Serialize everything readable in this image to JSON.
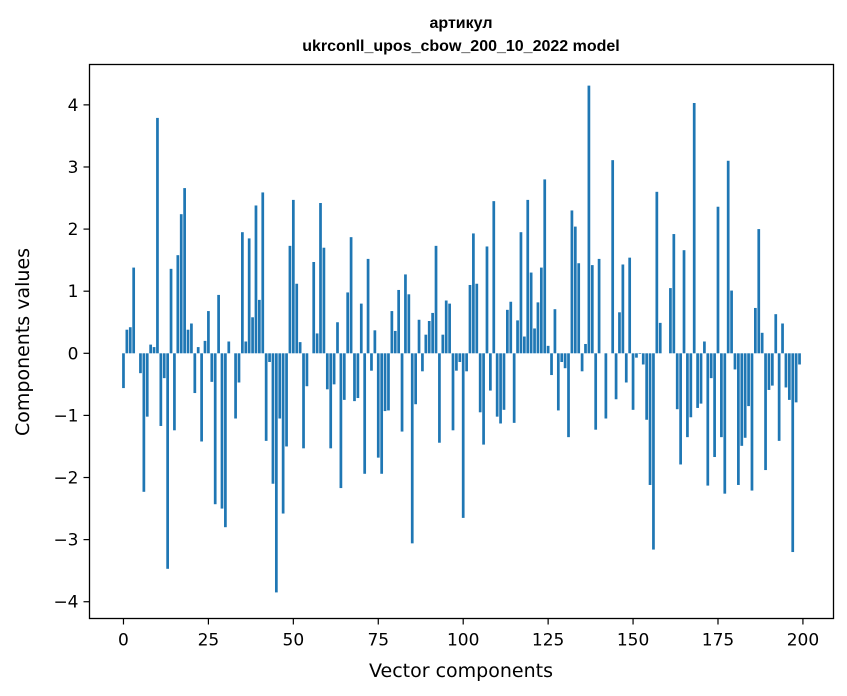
{
  "chart_data": {
    "type": "bar",
    "title_line1": "артикул",
    "title_line2": "ukrconll_upos_cbow_200_10_2022 model",
    "xlabel": "Vector components",
    "ylabel": "Components values",
    "xlim": [
      -10,
      209
    ],
    "ylim": [
      -4.27,
      4.65
    ],
    "xticks": [
      0,
      25,
      50,
      75,
      100,
      125,
      150,
      175,
      200
    ],
    "yticks": [
      -4,
      -3,
      -2,
      -1,
      0,
      1,
      2,
      3,
      4
    ],
    "xtick_labels": [
      "0",
      "25",
      "50",
      "75",
      "100",
      "125",
      "150",
      "175",
      "200"
    ],
    "ytick_labels": [
      "−4",
      "−3",
      "−2",
      "−1",
      "0",
      "1",
      "2",
      "3",
      "4"
    ],
    "bar_color": "#1f77b4",
    "values": [
      -0.56,
      0.38,
      0.42,
      1.38,
      0.0,
      -0.32,
      -2.23,
      -1.02,
      0.14,
      0.1,
      3.79,
      -1.17,
      -0.4,
      -3.47,
      1.36,
      -1.24,
      1.58,
      2.24,
      2.66,
      0.38,
      0.48,
      -0.64,
      0.1,
      -1.42,
      0.2,
      0.68,
      -0.46,
      -2.43,
      0.94,
      -2.5,
      -2.8,
      0.19,
      0.0,
      -1.05,
      -0.47,
      1.95,
      0.19,
      1.85,
      0.58,
      2.38,
      0.86,
      2.59,
      -1.41,
      -0.14,
      -2.1,
      -3.85,
      -1.05,
      -2.58,
      -1.5,
      1.73,
      2.47,
      1.12,
      0.18,
      -1.53,
      -0.53,
      0.0,
      1.47,
      0.32,
      2.42,
      1.7,
      -0.58,
      -1.53,
      -0.5,
      0.5,
      -2.17,
      -0.75,
      0.98,
      1.87,
      -0.77,
      -0.72,
      0.8,
      -1.94,
      1.52,
      -0.28,
      0.37,
      -1.68,
      -1.94,
      -0.93,
      -0.92,
      0.68,
      0.36,
      1.02,
      -1.26,
      1.27,
      0.95,
      -3.06,
      -0.82,
      0.54,
      -0.29,
      0.3,
      0.52,
      0.65,
      1.73,
      -1.44,
      0.3,
      0.85,
      0.8,
      -1.24,
      -0.28,
      -0.14,
      -2.65,
      -0.29,
      1.1,
      1.93,
      1.12,
      -0.95,
      -1.47,
      1.72,
      -0.6,
      2.45,
      -1.02,
      -1.13,
      -0.91,
      0.7,
      0.83,
      -1.12,
      0.53,
      1.95,
      0.27,
      2.47,
      1.3,
      0.4,
      0.82,
      1.38,
      2.8,
      0.12,
      -0.35,
      0.71,
      -0.92,
      -0.14,
      -0.24,
      -1.35,
      2.3,
      2.04,
      1.45,
      -0.29,
      0.15,
      4.31,
      1.42,
      -1.23,
      1.52,
      0.0,
      -1.05,
      0.0,
      3.11,
      -0.74,
      0.66,
      1.43,
      -0.47,
      1.54,
      -0.91,
      -0.07,
      -0.01,
      -0.18,
      -1.07,
      -2.12,
      -3.16,
      2.6,
      0.49,
      0.0,
      0.0,
      1.05,
      1.92,
      -0.9,
      -1.79,
      1.66,
      -1.35,
      -1.03,
      4.03,
      -0.88,
      -0.81,
      0.19,
      -2.13,
      -0.4,
      -1.67,
      2.36,
      -1.35,
      -2.26,
      3.1,
      1.01,
      -0.26,
      -2.12,
      -1.49,
      -1.36,
      -0.85,
      -2.21,
      0.73,
      2.0,
      0.33,
      -1.88,
      -0.59,
      -0.52,
      0.63,
      -1.41,
      0.48,
      -0.55,
      -0.75,
      -3.2,
      -0.79,
      -0.18,
      0.0
    ]
  }
}
